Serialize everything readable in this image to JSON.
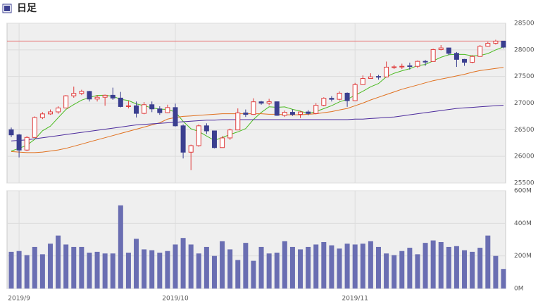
{
  "chart_data": [
    {
      "type": "candlestick",
      "title": "日足",
      "open": [
        26500,
        26403,
        26118,
        26355,
        26728,
        26797,
        26835,
        26909,
        27137,
        27182,
        27219,
        27076,
        27110,
        27147,
        27094,
        26935,
        26949,
        26807,
        26970,
        26891,
        26820,
        26916,
        26573,
        26078,
        26201,
        26573,
        26478,
        26164,
        26346,
        26496,
        26816,
        26787,
        27024,
        26998,
        27025,
        26770,
        26827,
        26788,
        26833,
        26805,
        26958,
        27090,
        27071,
        27186,
        27046,
        27347,
        27462,
        27500,
        27492,
        27675,
        27681,
        27700,
        27691,
        27784,
        27782,
        28005,
        28036,
        27934,
        27821,
        27767,
        27876,
        28067,
        28122,
        28164
      ],
      "high": [
        26540,
        26420,
        26380,
        26750,
        26830,
        26880,
        26940,
        27150,
        27310,
        27250,
        27230,
        27150,
        27160,
        27290,
        27210,
        27040,
        27030,
        27020,
        27030,
        26940,
        26970,
        26990,
        26600,
        26220,
        26600,
        26620,
        26480,
        26380,
        26520,
        26900,
        26880,
        27090,
        27040,
        27080,
        27030,
        26860,
        26880,
        26850,
        26870,
        27000,
        27110,
        27130,
        27220,
        27200,
        27380,
        27520,
        27560,
        27530,
        27780,
        27720,
        27740,
        27760,
        27800,
        27810,
        28020,
        28090,
        28040,
        27960,
        27830,
        27900,
        28090,
        28150,
        28190,
        28170
      ],
      "low": [
        26360,
        25980,
        26100,
        26350,
        26700,
        26780,
        26800,
        26900,
        27100,
        27150,
        27030,
        27030,
        26950,
        27060,
        26920,
        26900,
        26730,
        26790,
        26830,
        26780,
        26810,
        26560,
        25960,
        25740,
        26180,
        26420,
        26150,
        26160,
        26310,
        26490,
        26740,
        26780,
        26970,
        26960,
        26760,
        26740,
        26760,
        26720,
        26770,
        26790,
        26940,
        27030,
        27050,
        26930,
        27040,
        27340,
        27460,
        27440,
        27480,
        27640,
        27640,
        27630,
        27660,
        27700,
        27780,
        27990,
        27900,
        27680,
        27700,
        27750,
        27870,
        28060,
        28100,
        28030
      ],
      "close": [
        26403,
        26118,
        26355,
        26728,
        26797,
        26835,
        26909,
        27137,
        27182,
        27219,
        27076,
        27110,
        27147,
        27094,
        26935,
        26949,
        26807,
        26970,
        26891,
        26820,
        26916,
        26573,
        26078,
        26201,
        26573,
        26478,
        26164,
        26346,
        26496,
        26816,
        26787,
        27024,
        26998,
        27025,
        26770,
        26827,
        26788,
        26833,
        26805,
        26958,
        27090,
        27071,
        27186,
        27046,
        27347,
        27462,
        27492,
        27492,
        27675,
        27681,
        27691,
        27691,
        27784,
        27782,
        28005,
        28036,
        27934,
        27821,
        27767,
        27876,
        28067,
        28122,
        28164,
        28051
      ],
      "up_color": "#e03c3c",
      "down_color": "#3b3f90",
      "moving_averages": [
        {
          "color": "#4cbb22",
          "values": [
            26100,
            26150,
            26210,
            26320,
            26480,
            26567,
            26725,
            26881,
            26972,
            27056,
            27105,
            27145,
            27147,
            27129,
            27072,
            27047,
            26986,
            26951,
            26910,
            26887,
            26881,
            26834,
            26656,
            26518,
            26468,
            26381,
            26299,
            26352,
            26411,
            26460,
            26522,
            26694,
            26824,
            26930,
            26921,
            26929,
            26882,
            26849,
            26805,
            26842,
            26895,
            26951,
            27022,
            27070,
            27148,
            27222,
            27307,
            27368,
            27494,
            27560,
            27606,
            27646,
            27704,
            27726,
            27791,
            27860,
            27908,
            27916,
            27913,
            27887,
            27893,
            27931,
            27999,
            28056
          ]
        },
        {
          "color": "#e0701e",
          "values": [
            26090,
            26080,
            26070,
            26070,
            26080,
            26100,
            26120,
            26150,
            26190,
            26230,
            26270,
            26310,
            26350,
            26390,
            26430,
            26470,
            26510,
            26550,
            26590,
            26630,
            26700,
            26730,
            26750,
            26760,
            26770,
            26780,
            26790,
            26800,
            26800,
            26800,
            26800,
            26800,
            26800,
            26790,
            26790,
            26780,
            26780,
            26780,
            26790,
            26800,
            26820,
            26840,
            26870,
            26900,
            26950,
            27000,
            27060,
            27110,
            27160,
            27210,
            27260,
            27300,
            27340,
            27380,
            27420,
            27450,
            27480,
            27510,
            27540,
            27580,
            27610,
            27630,
            27650,
            27670
          ]
        },
        {
          "color": "#4b2a9c",
          "values": [
            26290,
            26300,
            26310,
            26330,
            26350,
            26370,
            26390,
            26410,
            26430,
            26450,
            26470,
            26490,
            26510,
            26530,
            26550,
            26570,
            26590,
            26600,
            26610,
            26620,
            26630,
            26640,
            26650,
            26660,
            26670,
            26680,
            26680,
            26690,
            26690,
            26690,
            26690,
            26690,
            26690,
            26690,
            26690,
            26690,
            26690,
            26690,
            26690,
            26690,
            26690,
            26690,
            26690,
            26690,
            26700,
            26700,
            26710,
            26720,
            26730,
            26740,
            26760,
            26780,
            26800,
            26820,
            26840,
            26860,
            26880,
            26900,
            26910,
            26920,
            26930,
            26940,
            26950,
            26960
          ]
        }
      ],
      "reference_line": {
        "value": 28164,
        "color": "#e87878"
      },
      "ylim": [
        25500,
        28500
      ],
      "yticks": [
        25500,
        26000,
        26500,
        27000,
        27500,
        28000,
        28500
      ],
      "grid": true
    },
    {
      "type": "bar",
      "categories": [
        null,
        "2019/9",
        null,
        null,
        null,
        null,
        null,
        null,
        null,
        null,
        null,
        null,
        null,
        null,
        null,
        null,
        null,
        null,
        null,
        null,
        null,
        "2019/10",
        null,
        null,
        null,
        null,
        null,
        null,
        null,
        null,
        null,
        null,
        null,
        null,
        null,
        null,
        null,
        null,
        null,
        null,
        null,
        null,
        null,
        null,
        "2019/11",
        null,
        null,
        null,
        null,
        null,
        null,
        null,
        null,
        null,
        null,
        null,
        null,
        null,
        null,
        null,
        null,
        null,
        null,
        null
      ],
      "values": [
        225,
        230,
        205,
        255,
        210,
        275,
        325,
        270,
        255,
        255,
        220,
        225,
        215,
        215,
        510,
        220,
        305,
        240,
        235,
        220,
        230,
        270,
        310,
        270,
        215,
        255,
        200,
        290,
        240,
        175,
        280,
        170,
        255,
        215,
        220,
        290,
        255,
        240,
        255,
        270,
        285,
        265,
        245,
        275,
        270,
        275,
        290,
        255,
        215,
        205,
        230,
        250,
        210,
        280,
        295,
        285,
        255,
        260,
        235,
        225,
        250,
        325,
        200,
        120
      ],
      "color": "#6a6eb2",
      "ylim": [
        0,
        600
      ],
      "yticks": [
        {
          "value": 0,
          "label": "0M"
        },
        {
          "value": 200,
          "label": "200M"
        },
        {
          "value": 400,
          "label": "400M"
        },
        {
          "value": 600,
          "label": "600M"
        }
      ],
      "grid": true
    }
  ]
}
